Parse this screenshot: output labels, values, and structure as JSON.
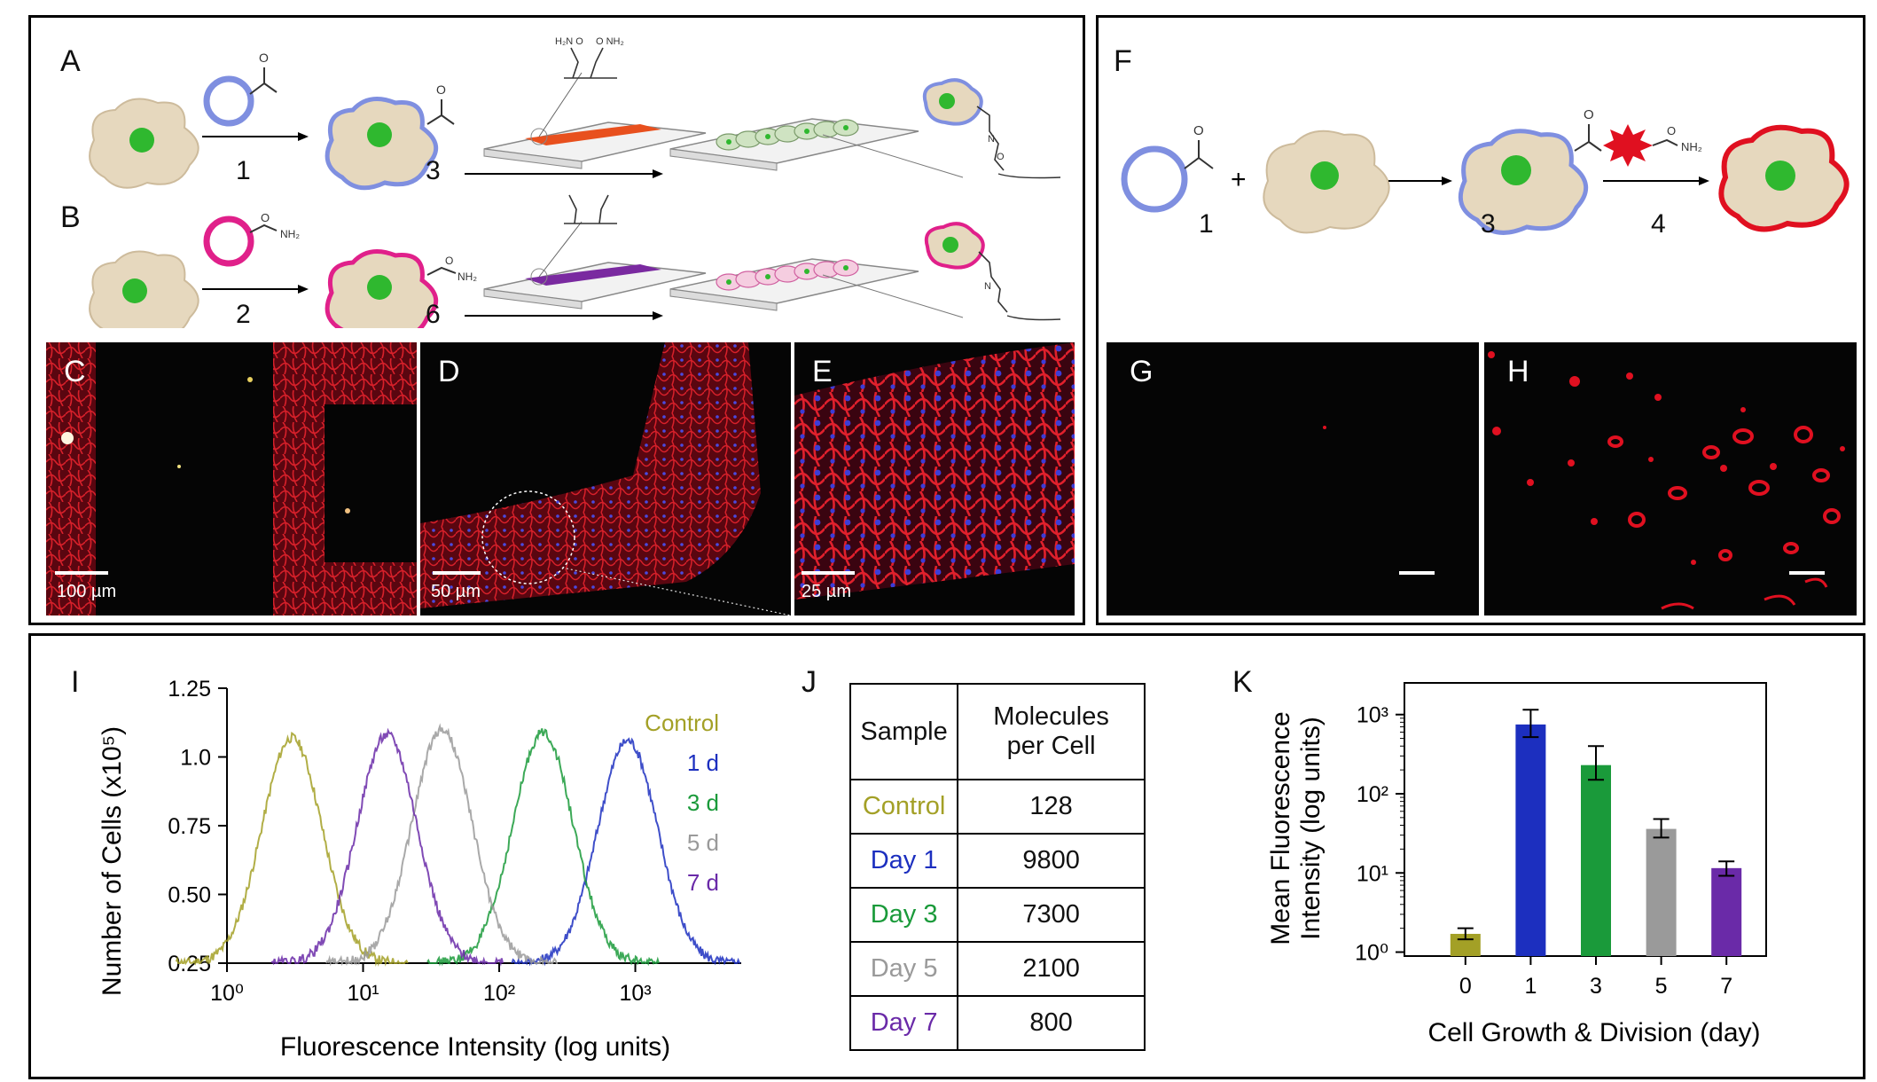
{
  "panel_labels": {
    "A": "A",
    "B": "B",
    "C": "C",
    "D": "D",
    "E": "E",
    "F": "F",
    "G": "G",
    "H": "H",
    "I": "I",
    "J": "J",
    "K": "K"
  },
  "schemes": {
    "a_compound_1": "1",
    "a_compound_3": "3",
    "b_compound_2": "2",
    "b_compound_6": "6",
    "f_compound_1": "1",
    "f_compound_3": "3",
    "f_compound_4": "4",
    "plus": "+"
  },
  "scale_bars": {
    "C": "100 µm",
    "D": "50 µm",
    "E": "25 µm"
  },
  "colors": {
    "control": "#a3a026",
    "day1": "#1c2fbf",
    "day3": "#1a9a3a",
    "day5": "#9a9a9a",
    "day7": "#6a2aa8",
    "fluor_red": "#e01020",
    "cell_fill": "#e6d8be",
    "nucleus": "#2fb82f"
  },
  "chart_data": [
    {
      "type": "line",
      "panel": "I",
      "xlabel": "Fluorescence Intensity (log units)",
      "ylabel": "Number of Cells (x10⁵)",
      "x_scale": "log",
      "xlim": [
        1,
        6000
      ],
      "ylim": [
        0.25,
        1.25
      ],
      "x_ticks": [
        "10⁰",
        "10¹",
        "10²",
        "10³"
      ],
      "y_ticks": [
        "0.25",
        "0.50",
        "0.75",
        "1.0",
        "1.25"
      ],
      "legend": [
        "Control",
        "1 d",
        "3 d",
        "5 d",
        "7 d"
      ],
      "series": [
        {
          "name": "Control",
          "peak_x": 3.0,
          "peak_y": 1.07
        },
        {
          "name": "1 d",
          "peak_x": 880,
          "peak_y": 1.06
        },
        {
          "name": "3 d",
          "peak_x": 210,
          "peak_y": 1.09
        },
        {
          "name": "5 d",
          "peak_x": 38,
          "peak_y": 1.1
        },
        {
          "name": "7 d",
          "peak_x": 15,
          "peak_y": 1.08
        }
      ]
    },
    {
      "type": "table",
      "panel": "J",
      "headers": [
        "Sample",
        "Molecules per Cell"
      ],
      "header_lines": [
        [
          "Sample"
        ],
        [
          "Molecules",
          "per Cell"
        ]
      ],
      "rows": [
        [
          "Control",
          "128"
        ],
        [
          "Day 1",
          "9800"
        ],
        [
          "Day 3",
          "7300"
        ],
        [
          "Day 5",
          "2100"
        ],
        [
          "Day 7",
          "800"
        ]
      ]
    },
    {
      "type": "bar",
      "panel": "K",
      "xlabel": "Cell Growth & Division (day)",
      "ylabel_lines": [
        "Mean Fluorescence",
        "Intensity (log units)"
      ],
      "y_scale": "log",
      "ylim": [
        1,
        1000
      ],
      "y_ticks": [
        "10⁰",
        "10¹",
        "10²",
        "10³"
      ],
      "categories": [
        "0",
        "1",
        "3",
        "5",
        "7"
      ],
      "values": [
        1.7,
        750,
        230,
        36,
        11.5
      ],
      "error_low": [
        1.45,
        520,
        150,
        28,
        9.2
      ],
      "error_high": [
        2.0,
        1150,
        400,
        48,
        14
      ]
    }
  ]
}
